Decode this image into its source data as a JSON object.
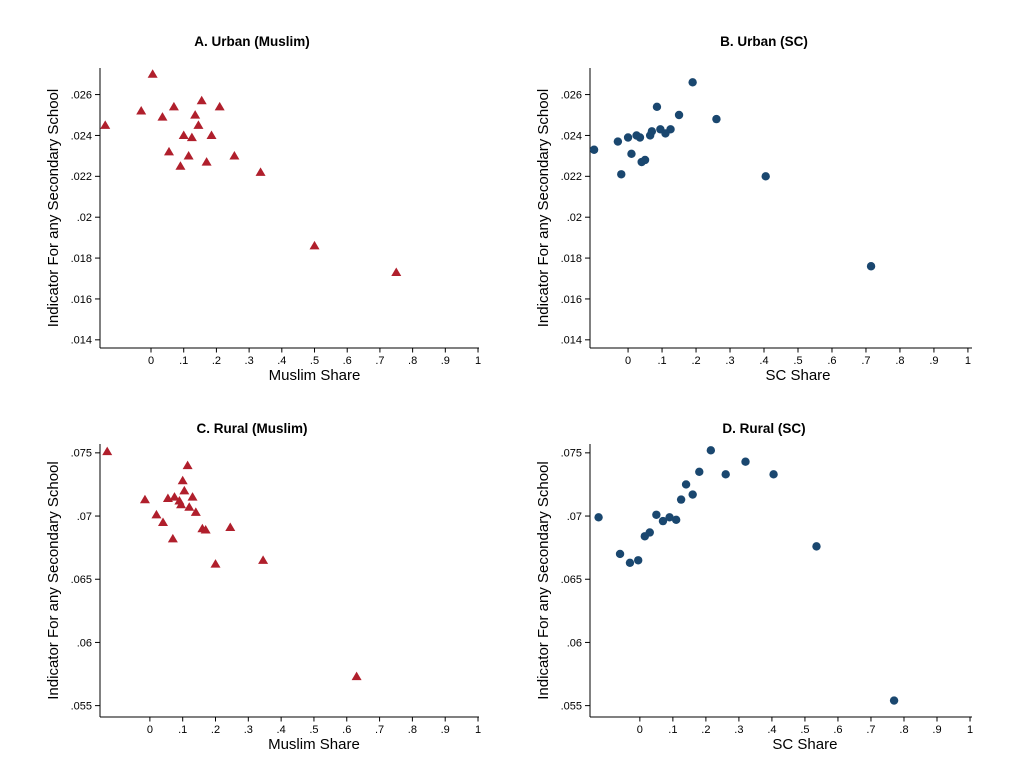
{
  "figure": {
    "background": "#ffffff",
    "axis_color": "#000000",
    "ylabel_shared": "Indicator For any Secondary School"
  },
  "chart_data": [
    {
      "panel": "A",
      "type": "scatter",
      "title": "A. Urban (Muslim)",
      "xlabel": "Muslim Share",
      "ylabel": "Indicator For any Secondary School",
      "marker": "triangle",
      "color": "#b01f2c",
      "legend": "none",
      "grid": false,
      "xlim": [
        -0.156,
        1.003
      ],
      "ylim": [
        0.0136,
        0.0273
      ],
      "xticks": [
        {
          "v": 0,
          "label": "0"
        },
        {
          "v": 0.1,
          "label": ".1"
        },
        {
          "v": 0.2,
          "label": ".2"
        },
        {
          "v": 0.3,
          "label": ".3"
        },
        {
          "v": 0.4,
          "label": ".4"
        },
        {
          "v": 0.5,
          "label": ".5"
        },
        {
          "v": 0.6,
          "label": ".6"
        },
        {
          "v": 0.7,
          "label": ".7"
        },
        {
          "v": 0.8,
          "label": ".8"
        },
        {
          "v": 0.9,
          "label": ".9"
        },
        {
          "v": 1,
          "label": "1"
        }
      ],
      "yticks": [
        {
          "v": 0.014,
          "label": ".014"
        },
        {
          "v": 0.016,
          "label": ".016"
        },
        {
          "v": 0.018,
          "label": ".018"
        },
        {
          "v": 0.02,
          "label": ".02"
        },
        {
          "v": 0.022,
          "label": ".022"
        },
        {
          "v": 0.024,
          "label": ".024"
        },
        {
          "v": 0.026,
          "label": ".026"
        }
      ],
      "points": [
        [
          -0.14,
          0.0245
        ],
        [
          -0.03,
          0.0252
        ],
        [
          0.005,
          0.027
        ],
        [
          0.035,
          0.0249
        ],
        [
          0.055,
          0.0232
        ],
        [
          0.07,
          0.0254
        ],
        [
          0.09,
          0.0225
        ],
        [
          0.1,
          0.024
        ],
        [
          0.115,
          0.023
        ],
        [
          0.125,
          0.0239
        ],
        [
          0.135,
          0.025
        ],
        [
          0.145,
          0.0245
        ],
        [
          0.155,
          0.0257
        ],
        [
          0.17,
          0.0227
        ],
        [
          0.185,
          0.024
        ],
        [
          0.21,
          0.0254
        ],
        [
          0.255,
          0.023
        ],
        [
          0.335,
          0.0222
        ],
        [
          0.5,
          0.0186
        ],
        [
          0.75,
          0.0173
        ]
      ]
    },
    {
      "panel": "B",
      "type": "scatter",
      "title": "B. Urban (SC)",
      "xlabel": "SC Share",
      "ylabel": "Indicator For any Secondary School",
      "marker": "circle",
      "color": "#1a476f",
      "legend": "none",
      "grid": false,
      "xlim": [
        -0.112,
        1.012
      ],
      "ylim": [
        0.0136,
        0.0273
      ],
      "xticks": [
        {
          "v": 0,
          "label": "0"
        },
        {
          "v": 0.1,
          "label": ".1"
        },
        {
          "v": 0.2,
          "label": ".2"
        },
        {
          "v": 0.3,
          "label": ".3"
        },
        {
          "v": 0.4,
          "label": ".4"
        },
        {
          "v": 0.5,
          "label": ".5"
        },
        {
          "v": 0.6,
          "label": ".6"
        },
        {
          "v": 0.7,
          "label": ".7"
        },
        {
          "v": 0.8,
          "label": ".8"
        },
        {
          "v": 0.9,
          "label": ".9"
        },
        {
          "v": 1,
          "label": "1"
        }
      ],
      "yticks": [
        {
          "v": 0.014,
          "label": ".014"
        },
        {
          "v": 0.016,
          "label": ".016"
        },
        {
          "v": 0.018,
          "label": ".018"
        },
        {
          "v": 0.02,
          "label": ".02"
        },
        {
          "v": 0.022,
          "label": ".022"
        },
        {
          "v": 0.024,
          "label": ".024"
        },
        {
          "v": 0.026,
          "label": ".026"
        }
      ],
      "points": [
        [
          -0.1,
          0.0233
        ],
        [
          -0.03,
          0.0237
        ],
        [
          -0.02,
          0.0221
        ],
        [
          0.0,
          0.0239
        ],
        [
          0.01,
          0.0231
        ],
        [
          0.025,
          0.024
        ],
        [
          0.035,
          0.0239
        ],
        [
          0.04,
          0.0227
        ],
        [
          0.05,
          0.0228
        ],
        [
          0.065,
          0.024
        ],
        [
          0.07,
          0.0242
        ],
        [
          0.085,
          0.0254
        ],
        [
          0.095,
          0.0243
        ],
        [
          0.11,
          0.0241
        ],
        [
          0.125,
          0.0243
        ],
        [
          0.15,
          0.025
        ],
        [
          0.19,
          0.0266
        ],
        [
          0.26,
          0.0248
        ],
        [
          0.405,
          0.022
        ],
        [
          0.715,
          0.0176
        ]
      ]
    },
    {
      "panel": "C",
      "type": "scatter",
      "title": "C. Rural (Muslim)",
      "xlabel": "Muslim Share",
      "ylabel": "Indicator For any Secondary School",
      "marker": "triangle",
      "color": "#b01f2c",
      "legend": "none",
      "grid": false,
      "xlim": [
        -0.152,
        1.003
      ],
      "ylim": [
        0.0541,
        0.0757
      ],
      "xticks": [
        {
          "v": 0,
          "label": "0"
        },
        {
          "v": 0.1,
          "label": ".1"
        },
        {
          "v": 0.2,
          "label": ".2"
        },
        {
          "v": 0.3,
          "label": ".3"
        },
        {
          "v": 0.4,
          "label": ".4"
        },
        {
          "v": 0.5,
          "label": ".5"
        },
        {
          "v": 0.6,
          "label": ".6"
        },
        {
          "v": 0.7,
          "label": ".7"
        },
        {
          "v": 0.8,
          "label": ".8"
        },
        {
          "v": 0.9,
          "label": ".9"
        },
        {
          "v": 1,
          "label": "1"
        }
      ],
      "yticks": [
        {
          "v": 0.055,
          "label": ".055"
        },
        {
          "v": 0.06,
          "label": ".06"
        },
        {
          "v": 0.065,
          "label": ".065"
        },
        {
          "v": 0.07,
          "label": ".07"
        },
        {
          "v": 0.075,
          "label": ".075"
        }
      ],
      "points": [
        [
          -0.13,
          0.0751
        ],
        [
          -0.015,
          0.0713
        ],
        [
          0.02,
          0.0701
        ],
        [
          0.04,
          0.0695
        ],
        [
          0.055,
          0.0714
        ],
        [
          0.07,
          0.0682
        ],
        [
          0.075,
          0.0715
        ],
        [
          0.09,
          0.0712
        ],
        [
          0.095,
          0.0709
        ],
        [
          0.1,
          0.0728
        ],
        [
          0.105,
          0.072
        ],
        [
          0.115,
          0.074
        ],
        [
          0.12,
          0.0707
        ],
        [
          0.13,
          0.0715
        ],
        [
          0.14,
          0.0703
        ],
        [
          0.16,
          0.069
        ],
        [
          0.17,
          0.0689
        ],
        [
          0.2,
          0.0662
        ],
        [
          0.245,
          0.0691
        ],
        [
          0.345,
          0.0665
        ],
        [
          0.63,
          0.0573
        ]
      ]
    },
    {
      "panel": "D",
      "type": "scatter",
      "title": "D. Rural (SC)",
      "xlabel": "SC Share",
      "ylabel": "Indicator For any Secondary School",
      "marker": "circle",
      "color": "#1a476f",
      "legend": "none",
      "grid": false,
      "xlim": [
        -0.151,
        1.006
      ],
      "ylim": [
        0.0541,
        0.0757
      ],
      "xticks": [
        {
          "v": 0,
          "label": "0"
        },
        {
          "v": 0.1,
          "label": ".1"
        },
        {
          "v": 0.2,
          "label": ".2"
        },
        {
          "v": 0.3,
          "label": ".3"
        },
        {
          "v": 0.4,
          "label": ".4"
        },
        {
          "v": 0.5,
          "label": ".5"
        },
        {
          "v": 0.6,
          "label": ".6"
        },
        {
          "v": 0.7,
          "label": ".7"
        },
        {
          "v": 0.8,
          "label": ".8"
        },
        {
          "v": 0.9,
          "label": ".9"
        },
        {
          "v": 1,
          "label": "1"
        }
      ],
      "yticks": [
        {
          "v": 0.055,
          "label": ".055"
        },
        {
          "v": 0.06,
          "label": ".06"
        },
        {
          "v": 0.065,
          "label": ".065"
        },
        {
          "v": 0.07,
          "label": ".07"
        },
        {
          "v": 0.075,
          "label": ".075"
        }
      ],
      "points": [
        [
          -0.125,
          0.0699
        ],
        [
          -0.06,
          0.067
        ],
        [
          -0.03,
          0.0663
        ],
        [
          -0.005,
          0.0665
        ],
        [
          0.015,
          0.0684
        ],
        [
          0.03,
          0.0687
        ],
        [
          0.05,
          0.0701
        ],
        [
          0.07,
          0.0696
        ],
        [
          0.09,
          0.0699
        ],
        [
          0.11,
          0.0697
        ],
        [
          0.125,
          0.0713
        ],
        [
          0.14,
          0.0725
        ],
        [
          0.16,
          0.0717
        ],
        [
          0.18,
          0.0735
        ],
        [
          0.215,
          0.0752
        ],
        [
          0.26,
          0.0733
        ],
        [
          0.32,
          0.0743
        ],
        [
          0.405,
          0.0733
        ],
        [
          0.535,
          0.0676
        ],
        [
          0.77,
          0.0554
        ]
      ]
    }
  ]
}
